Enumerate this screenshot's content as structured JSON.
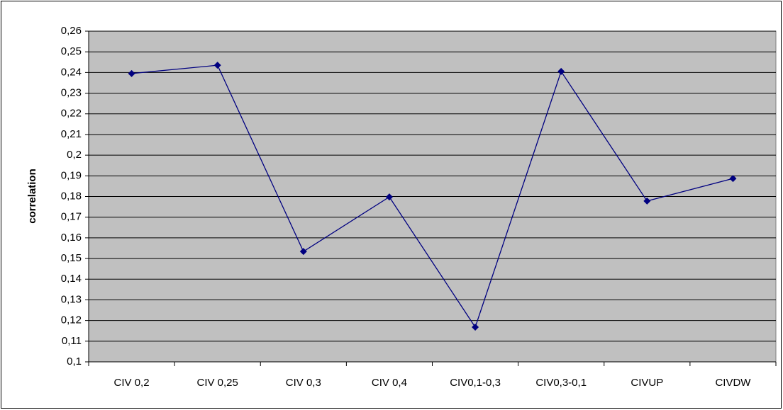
{
  "chart_data": {
    "type": "line",
    "y_label": "correlation",
    "categories": [
      "CIV 0,2",
      "CIV 0,25",
      "CIV 0,3",
      "CIV 0,4",
      "CIV0,1-0,3",
      "CIV0,3-0,1",
      "CIVUP",
      "CIVDW"
    ],
    "series": [
      {
        "color": "#000080",
        "values": [
          0.2395,
          0.2435,
          0.1534,
          0.1798,
          0.1168,
          0.2405,
          0.1778,
          0.1887
        ]
      }
    ],
    "ylim": [
      0.1,
      0.26
    ],
    "yticks": [
      {
        "value": 0.1,
        "label": "0,1"
      },
      {
        "value": 0.11,
        "label": "0,11"
      },
      {
        "value": 0.12,
        "label": "0,12"
      },
      {
        "value": 0.13,
        "label": "0,13"
      },
      {
        "value": 0.14,
        "label": "0,14"
      },
      {
        "value": 0.15,
        "label": "0,15"
      },
      {
        "value": 0.16,
        "label": "0,16"
      },
      {
        "value": 0.17,
        "label": "0,17"
      },
      {
        "value": 0.18,
        "label": "0,18"
      },
      {
        "value": 0.19,
        "label": "0,19"
      },
      {
        "value": 0.2,
        "label": "0,2"
      },
      {
        "value": 0.21,
        "label": "0,21"
      },
      {
        "value": 0.22,
        "label": "0,22"
      },
      {
        "value": 0.23,
        "label": "0,23"
      },
      {
        "value": 0.24,
        "label": "0,24"
      },
      {
        "value": 0.25,
        "label": "0,25"
      },
      {
        "value": 0.26,
        "label": "0,26"
      }
    ],
    "grid": true,
    "plot_background": "#c0c0c0"
  }
}
